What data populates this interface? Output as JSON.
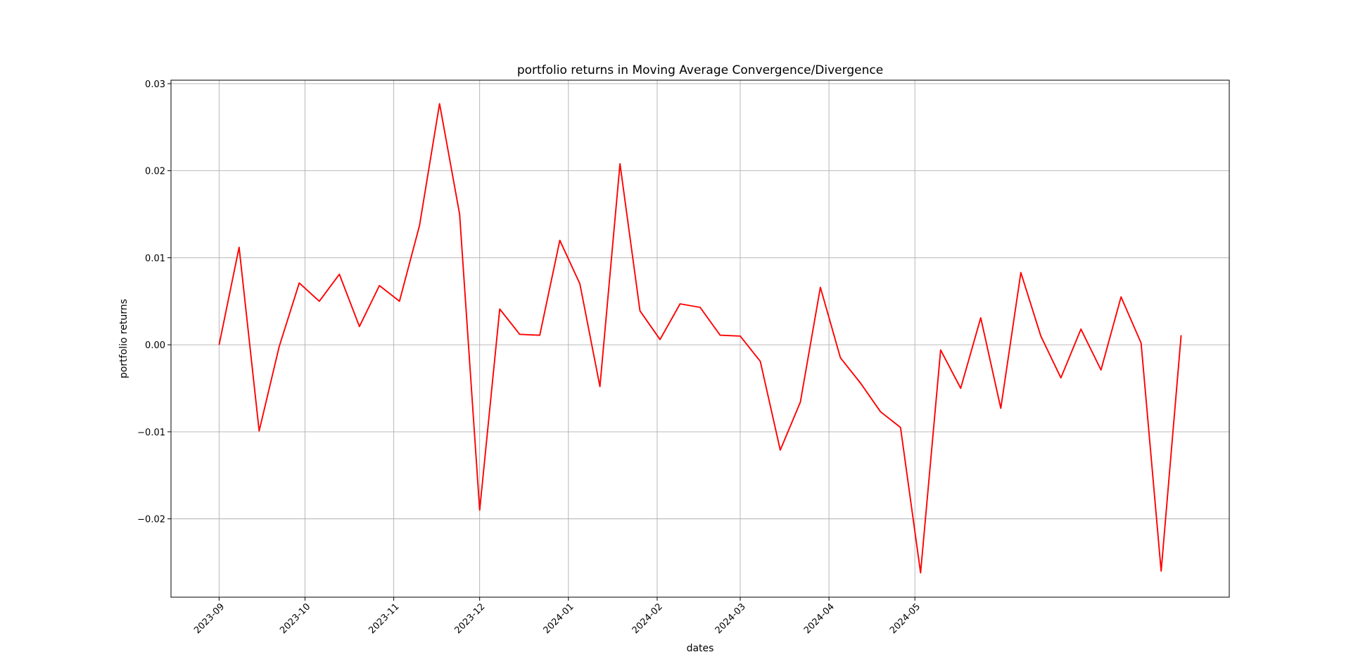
{
  "chart_data": {
    "type": "line",
    "title": "portfolio returns in Moving Average Convergence/Divergence",
    "xlabel": "dates",
    "ylabel": "portfolio returns",
    "x": [
      "2023-09-01",
      "2023-09-08",
      "2023-09-15",
      "2023-09-22",
      "2023-09-29",
      "2023-10-06",
      "2023-10-13",
      "2023-10-20",
      "2023-10-27",
      "2023-11-03",
      "2023-11-10",
      "2023-11-17",
      "2023-11-24",
      "2023-12-01",
      "2023-12-08",
      "2023-12-15",
      "2023-12-22",
      "2023-12-29",
      "2024-01-05",
      "2024-01-12",
      "2024-01-19",
      "2024-01-26",
      "2024-02-02",
      "2024-02-09",
      "2024-02-16",
      "2024-02-23",
      "2024-03-01",
      "2024-03-08",
      "2024-03-15",
      "2024-03-22",
      "2024-03-29",
      "2024-04-05",
      "2024-04-12",
      "2024-04-19",
      "2024-04-26",
      "2024-05-03",
      "2024-05-10",
      "2024-05-17",
      "2024-05-24",
      "2024-05-31",
      "2024-06-07",
      "2024-06-14",
      "2024-06-21",
      "2024-06-28",
      "2024-07-05",
      "2024-07-12",
      "2024-07-19",
      "2024-07-26",
      "2024-08-02"
    ],
    "series": [
      {
        "color": "#ff0000",
        "values": [
          0.0,
          0.0112,
          -0.0099,
          -0.0002,
          0.0071,
          0.005,
          0.0081,
          0.0021,
          0.0068,
          0.005,
          0.0137,
          0.0277,
          0.015,
          -0.019,
          0.0041,
          0.0012,
          0.0011,
          0.012,
          0.007,
          -0.0048,
          0.0208,
          0.0039,
          0.0006,
          0.0047,
          0.0043,
          0.0011,
          0.001,
          -0.0019,
          -0.0121,
          -0.0066,
          0.0066,
          -0.0015,
          -0.0044,
          -0.0077,
          -0.0095,
          -0.0262,
          -0.0006,
          -0.005,
          0.0031,
          -0.0073,
          0.0083,
          0.001,
          -0.0038,
          0.0018,
          -0.0029,
          0.0055,
          0.0002,
          -0.026,
          0.0011
        ]
      }
    ],
    "xticks": [
      "2023-09",
      "2023-10",
      "2023-11",
      "2023-12",
      "2024-01",
      "2024-02",
      "2024-03",
      "2024-04",
      "2024-05"
    ],
    "yticks": [
      -0.02,
      -0.01,
      0.0,
      0.01,
      0.02,
      0.03
    ],
    "ytick_labels": [
      "−0.02",
      "−0.01",
      "0.00",
      "0.01",
      "0.02",
      "0.03"
    ],
    "ylim": [
      -0.029,
      0.0304
    ],
    "grid": true
  }
}
